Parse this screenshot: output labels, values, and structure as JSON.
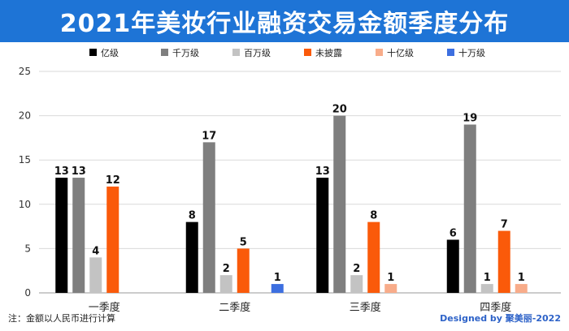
{
  "chart_data": {
    "type": "bar",
    "title": "2021年美妆行业融资交易金额季度分布",
    "xlabel": "",
    "ylabel": "",
    "categories": [
      "一季度",
      "二季度",
      "三季度",
      "四季度"
    ],
    "series": [
      {
        "name": "亿级",
        "color": "#000000",
        "values": [
          13,
          8,
          13,
          6
        ]
      },
      {
        "name": "千万级",
        "color": "#7f7f7f",
        "values": [
          13,
          17,
          20,
          19
        ]
      },
      {
        "name": "百万级",
        "color": "#c3c3c3",
        "values": [
          4,
          2,
          2,
          1
        ]
      },
      {
        "name": "未披露",
        "color": "#fa5a0a",
        "values": [
          12,
          5,
          8,
          7
        ]
      },
      {
        "name": "十亿级",
        "color": "#f8ac8a",
        "values": [
          0,
          0,
          1,
          1
        ]
      },
      {
        "name": "十万级",
        "color": "#3d6fe0",
        "values": [
          0,
          1,
          0,
          0
        ]
      }
    ],
    "ylim": [
      0,
      25
    ],
    "yticks": [
      0,
      5,
      10,
      15,
      20,
      25
    ],
    "grid": true,
    "legend_position": "top"
  },
  "footnote": "注：金额以人民币进行计算",
  "credit": "Designed by 聚美丽-2022"
}
